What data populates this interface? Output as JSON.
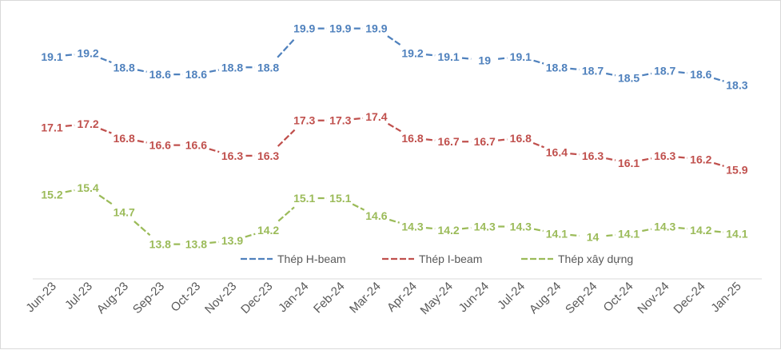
{
  "chart_data": {
    "type": "line",
    "categories": [
      "Jun-23",
      "Jul-23",
      "Aug-23",
      "Sep-23",
      "Oct-23",
      "Nov-23",
      "Dec-23",
      "Jan-24",
      "Feb-24",
      "Mar-24",
      "Apr-24",
      "May-24",
      "Jun-24",
      "Jul-24",
      "Aug-24",
      "Sep-24",
      "Oct-24",
      "Nov-24",
      "Dec-24",
      "Jan-25"
    ],
    "series": [
      {
        "name": "Thép H-beam",
        "color": "#4f81bd",
        "values": [
          19.1,
          19.2,
          18.8,
          18.6,
          18.6,
          18.8,
          18.8,
          19.9,
          19.9,
          19.9,
          19.2,
          19.1,
          19,
          19.1,
          18.8,
          18.7,
          18.5,
          18.7,
          18.6,
          18.3
        ]
      },
      {
        "name": "Thép I-beam",
        "color": "#c0504d",
        "values": [
          17.1,
          17.2,
          16.8,
          16.6,
          16.6,
          16.3,
          16.3,
          17.3,
          17.3,
          17.4,
          16.8,
          16.7,
          16.7,
          16.8,
          16.4,
          16.3,
          16.1,
          16.3,
          16.2,
          15.9
        ]
      },
      {
        "name": "Thép xây dựng",
        "color": "#9bbb59",
        "values": [
          15.2,
          15.4,
          14.7,
          13.8,
          13.8,
          13.9,
          14.2,
          15.1,
          15.1,
          14.6,
          14.3,
          14.2,
          14.3,
          14.3,
          14.1,
          14,
          14.1,
          14.3,
          14.2,
          14.1
        ]
      }
    ],
    "title": "",
    "xlabel": "",
    "ylabel": "",
    "ylim": [
      13,
      20.5
    ],
    "grid": false,
    "legend_position": "bottom-center",
    "line_style": "dashed",
    "data_labels": true
  }
}
